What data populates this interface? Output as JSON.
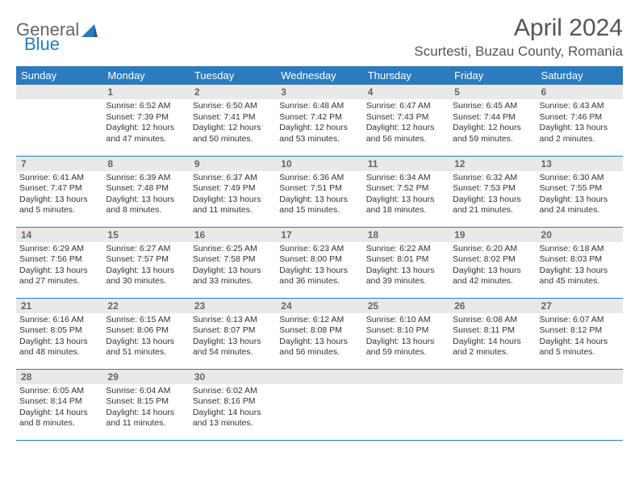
{
  "brand": {
    "part1": "General",
    "part2": "Blue"
  },
  "title": "April 2024",
  "location": "Scurtesti, Buzau County, Romania",
  "colors": {
    "header_bg": "#2b7bbd",
    "header_text": "#ffffff",
    "daynum_bg": "#e9e9e9",
    "daynum_text": "#666666",
    "body_text": "#333333",
    "rule": "#2b7bbd"
  },
  "weekdays": [
    "Sunday",
    "Monday",
    "Tuesday",
    "Wednesday",
    "Thursday",
    "Friday",
    "Saturday"
  ],
  "weeks": [
    [
      {
        "day": "",
        "sunrise": "",
        "sunset": "",
        "daylight": ""
      },
      {
        "day": "1",
        "sunrise": "Sunrise: 6:52 AM",
        "sunset": "Sunset: 7:39 PM",
        "daylight": "Daylight: 12 hours and 47 minutes."
      },
      {
        "day": "2",
        "sunrise": "Sunrise: 6:50 AM",
        "sunset": "Sunset: 7:41 PM",
        "daylight": "Daylight: 12 hours and 50 minutes."
      },
      {
        "day": "3",
        "sunrise": "Sunrise: 6:48 AM",
        "sunset": "Sunset: 7:42 PM",
        "daylight": "Daylight: 12 hours and 53 minutes."
      },
      {
        "day": "4",
        "sunrise": "Sunrise: 6:47 AM",
        "sunset": "Sunset: 7:43 PM",
        "daylight": "Daylight: 12 hours and 56 minutes."
      },
      {
        "day": "5",
        "sunrise": "Sunrise: 6:45 AM",
        "sunset": "Sunset: 7:44 PM",
        "daylight": "Daylight: 12 hours and 59 minutes."
      },
      {
        "day": "6",
        "sunrise": "Sunrise: 6:43 AM",
        "sunset": "Sunset: 7:46 PM",
        "daylight": "Daylight: 13 hours and 2 minutes."
      }
    ],
    [
      {
        "day": "7",
        "sunrise": "Sunrise: 6:41 AM",
        "sunset": "Sunset: 7:47 PM",
        "daylight": "Daylight: 13 hours and 5 minutes."
      },
      {
        "day": "8",
        "sunrise": "Sunrise: 6:39 AM",
        "sunset": "Sunset: 7:48 PM",
        "daylight": "Daylight: 13 hours and 8 minutes."
      },
      {
        "day": "9",
        "sunrise": "Sunrise: 6:37 AM",
        "sunset": "Sunset: 7:49 PM",
        "daylight": "Daylight: 13 hours and 11 minutes."
      },
      {
        "day": "10",
        "sunrise": "Sunrise: 6:36 AM",
        "sunset": "Sunset: 7:51 PM",
        "daylight": "Daylight: 13 hours and 15 minutes."
      },
      {
        "day": "11",
        "sunrise": "Sunrise: 6:34 AM",
        "sunset": "Sunset: 7:52 PM",
        "daylight": "Daylight: 13 hours and 18 minutes."
      },
      {
        "day": "12",
        "sunrise": "Sunrise: 6:32 AM",
        "sunset": "Sunset: 7:53 PM",
        "daylight": "Daylight: 13 hours and 21 minutes."
      },
      {
        "day": "13",
        "sunrise": "Sunrise: 6:30 AM",
        "sunset": "Sunset: 7:55 PM",
        "daylight": "Daylight: 13 hours and 24 minutes."
      }
    ],
    [
      {
        "day": "14",
        "sunrise": "Sunrise: 6:29 AM",
        "sunset": "Sunset: 7:56 PM",
        "daylight": "Daylight: 13 hours and 27 minutes."
      },
      {
        "day": "15",
        "sunrise": "Sunrise: 6:27 AM",
        "sunset": "Sunset: 7:57 PM",
        "daylight": "Daylight: 13 hours and 30 minutes."
      },
      {
        "day": "16",
        "sunrise": "Sunrise: 6:25 AM",
        "sunset": "Sunset: 7:58 PM",
        "daylight": "Daylight: 13 hours and 33 minutes."
      },
      {
        "day": "17",
        "sunrise": "Sunrise: 6:23 AM",
        "sunset": "Sunset: 8:00 PM",
        "daylight": "Daylight: 13 hours and 36 minutes."
      },
      {
        "day": "18",
        "sunrise": "Sunrise: 6:22 AM",
        "sunset": "Sunset: 8:01 PM",
        "daylight": "Daylight: 13 hours and 39 minutes."
      },
      {
        "day": "19",
        "sunrise": "Sunrise: 6:20 AM",
        "sunset": "Sunset: 8:02 PM",
        "daylight": "Daylight: 13 hours and 42 minutes."
      },
      {
        "day": "20",
        "sunrise": "Sunrise: 6:18 AM",
        "sunset": "Sunset: 8:03 PM",
        "daylight": "Daylight: 13 hours and 45 minutes."
      }
    ],
    [
      {
        "day": "21",
        "sunrise": "Sunrise: 6:16 AM",
        "sunset": "Sunset: 8:05 PM",
        "daylight": "Daylight: 13 hours and 48 minutes."
      },
      {
        "day": "22",
        "sunrise": "Sunrise: 6:15 AM",
        "sunset": "Sunset: 8:06 PM",
        "daylight": "Daylight: 13 hours and 51 minutes."
      },
      {
        "day": "23",
        "sunrise": "Sunrise: 6:13 AM",
        "sunset": "Sunset: 8:07 PM",
        "daylight": "Daylight: 13 hours and 54 minutes."
      },
      {
        "day": "24",
        "sunrise": "Sunrise: 6:12 AM",
        "sunset": "Sunset: 8:08 PM",
        "daylight": "Daylight: 13 hours and 56 minutes."
      },
      {
        "day": "25",
        "sunrise": "Sunrise: 6:10 AM",
        "sunset": "Sunset: 8:10 PM",
        "daylight": "Daylight: 13 hours and 59 minutes."
      },
      {
        "day": "26",
        "sunrise": "Sunrise: 6:08 AM",
        "sunset": "Sunset: 8:11 PM",
        "daylight": "Daylight: 14 hours and 2 minutes."
      },
      {
        "day": "27",
        "sunrise": "Sunrise: 6:07 AM",
        "sunset": "Sunset: 8:12 PM",
        "daylight": "Daylight: 14 hours and 5 minutes."
      }
    ],
    [
      {
        "day": "28",
        "sunrise": "Sunrise: 6:05 AM",
        "sunset": "Sunset: 8:14 PM",
        "daylight": "Daylight: 14 hours and 8 minutes."
      },
      {
        "day": "29",
        "sunrise": "Sunrise: 6:04 AM",
        "sunset": "Sunset: 8:15 PM",
        "daylight": "Daylight: 14 hours and 11 minutes."
      },
      {
        "day": "30",
        "sunrise": "Sunrise: 6:02 AM",
        "sunset": "Sunset: 8:16 PM",
        "daylight": "Daylight: 14 hours and 13 minutes."
      },
      {
        "day": "",
        "sunrise": "",
        "sunset": "",
        "daylight": ""
      },
      {
        "day": "",
        "sunrise": "",
        "sunset": "",
        "daylight": ""
      },
      {
        "day": "",
        "sunrise": "",
        "sunset": "",
        "daylight": ""
      },
      {
        "day": "",
        "sunrise": "",
        "sunset": "",
        "daylight": ""
      }
    ]
  ]
}
